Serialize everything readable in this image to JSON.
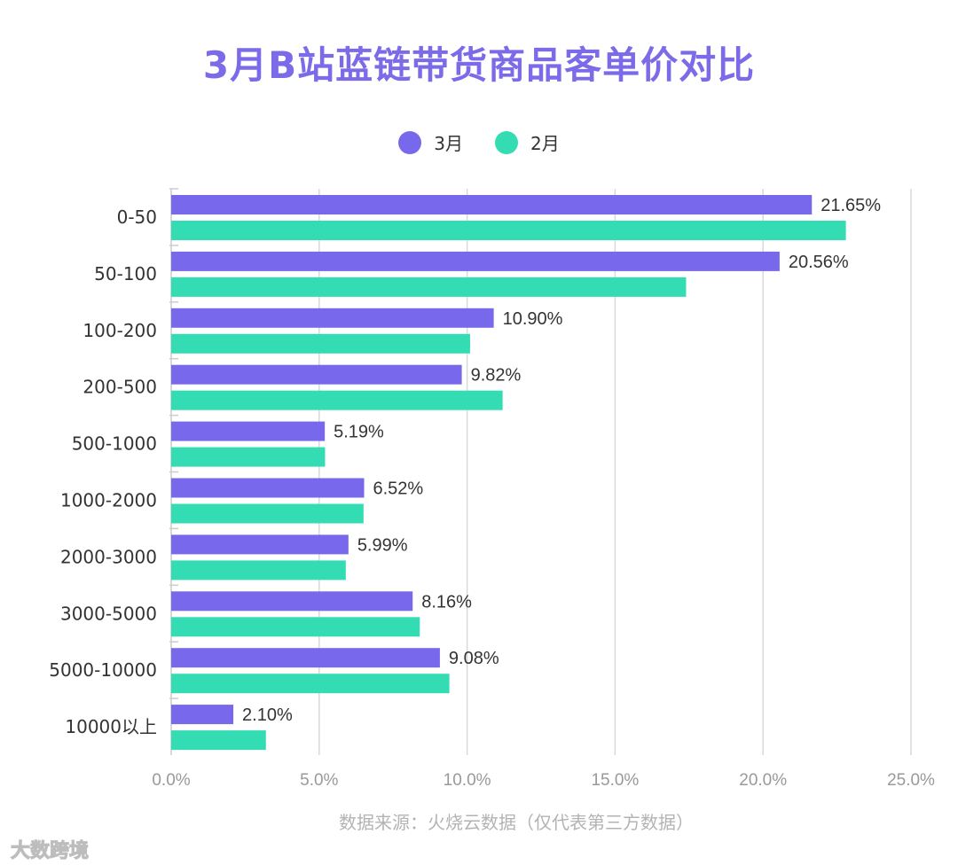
{
  "title": "3月B站蓝链带货商品客单价对比",
  "source": "数据来源：火烧云数据（仅代表第三方数据）",
  "watermark": "大数跨境",
  "colors": {
    "march": "#7869ec",
    "feb": "#34dcb4",
    "grid": "#d9d9d9",
    "axis_text": "#999999"
  },
  "chart_data": {
    "type": "bar",
    "orientation": "horizontal",
    "title": "3月B站蓝链带货商品客单价对比",
    "categories": [
      "0-50",
      "50-100",
      "100-200",
      "200-500",
      "500-1000",
      "1000-2000",
      "2000-3000",
      "3000-5000",
      "5000-10000",
      "10000以上"
    ],
    "series": [
      {
        "name": "3月",
        "values": [
          21.65,
          20.56,
          10.9,
          9.82,
          5.19,
          6.52,
          5.99,
          8.16,
          9.08,
          2.1
        ],
        "labels": [
          "21.65%",
          "20.56%",
          "10.90%",
          "9.82%",
          "5.19%",
          "6.52%",
          "5.99%",
          "8.16%",
          "9.08%",
          "2.10%"
        ]
      },
      {
        "name": "2月",
        "values": [
          22.8,
          17.4,
          10.1,
          11.2,
          5.2,
          6.5,
          5.9,
          8.4,
          9.4,
          3.2
        ]
      }
    ],
    "xlim": [
      0,
      25
    ],
    "xticks": [
      "0.0%",
      "5.0%",
      "10.0%",
      "15.0%",
      "20.0%",
      "25.0%"
    ],
    "grid": true,
    "legend_position": "top-center"
  }
}
